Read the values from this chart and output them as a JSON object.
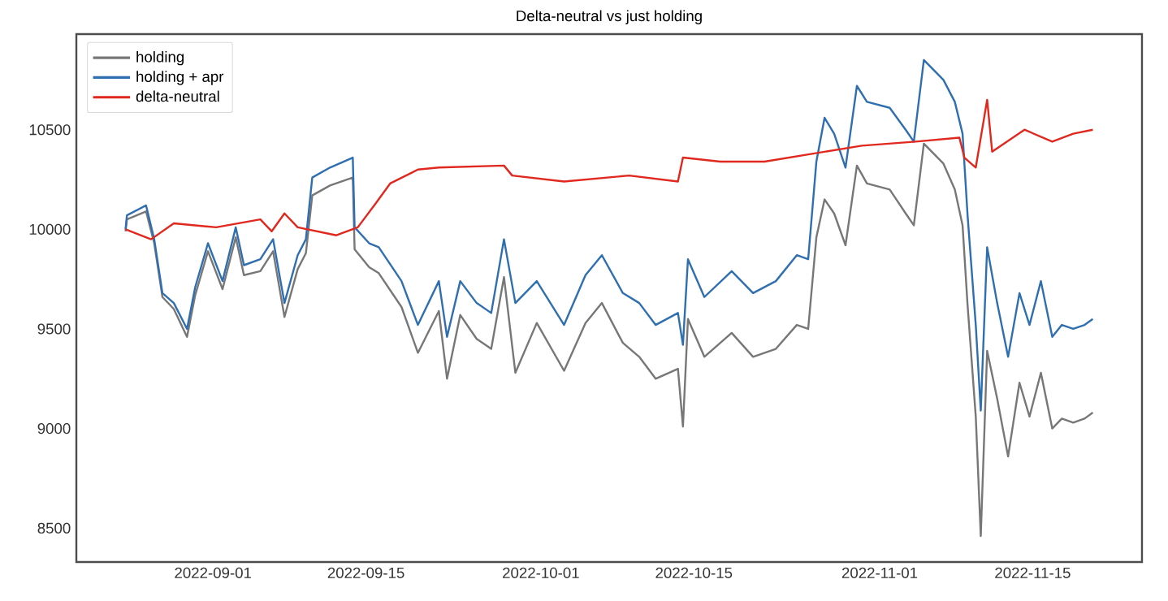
{
  "chart_data": {
    "type": "line",
    "title": "Delta-neutral vs just holding",
    "xlim": [
      "2022-08-19T12:00",
      "2022-11-25T00:00"
    ],
    "xticks": [
      "2022-09-01",
      "2022-09-15",
      "2022-10-01",
      "2022-10-15",
      "2022-11-01",
      "2022-11-15"
    ],
    "ylim": [
      8330,
      10980
    ],
    "yticks": [
      8500,
      9000,
      9500,
      10000,
      10500
    ],
    "legend": "top left",
    "grid": false,
    "series": [
      {
        "name": "holding",
        "color": "#777777",
        "x": [
          "2022-08-24T00:00",
          "2022-08-24T03:00",
          "2022-08-25T21:00",
          "2022-08-26T15:00",
          "2022-08-27T09:00",
          "2022-08-28T10:00",
          "2022-08-29T15:00",
          "2022-08-30T09:00",
          "2022-08-31T13:00",
          "2022-09-01T21:00",
          "2022-09-03T02:00",
          "2022-09-03T20:00",
          "2022-09-05T08:00",
          "2022-09-06T12:00",
          "2022-09-07T13:00",
          "2022-09-08T18:00",
          "2022-09-09T12:00",
          "2022-09-10T02:00",
          "2022-09-11T17:00",
          "2022-09-13T19:00",
          "2022-09-13T23:00",
          "2022-09-15T07:00",
          "2022-09-16T04:00",
          "2022-09-18T06:00",
          "2022-09-19T18:00",
          "2022-09-21T16:00",
          "2022-09-22T10:00",
          "2022-09-23T15:00",
          "2022-09-25T03:00",
          "2022-09-26T11:00",
          "2022-09-27T15:00",
          "2022-09-28T16:00",
          "2022-09-30T15:00",
          "2022-10-03T03:00",
          "2022-10-05T02:00",
          "2022-10-06T14:00",
          "2022-10-08T12:00",
          "2022-10-10T00:00",
          "2022-10-11T12:00",
          "2022-10-13T13:00",
          "2022-10-14T00:00",
          "2022-10-14T11:00",
          "2022-10-15T23:00",
          "2022-10-18T11:00",
          "2022-10-20T10:00",
          "2022-10-22T12:00",
          "2022-10-24T10:00",
          "2022-10-25T11:00",
          "2022-10-26T05:00",
          "2022-10-26T23:00",
          "2022-10-27T20:00",
          "2022-10-28T21:00",
          "2022-10-29T22:00",
          "2022-10-30T20:00",
          "2022-11-01T22:00",
          "2022-11-03T09:00",
          "2022-11-04T03:00",
          "2022-11-05T01:00",
          "2022-11-06T20:00",
          "2022-11-07T21:00",
          "2022-11-08T14:00",
          "2022-11-09T01:00",
          "2022-11-09T19:00",
          "2022-11-10T06:00",
          "2022-11-10T20:00",
          "2022-11-11T18:00",
          "2022-11-12T18:00",
          "2022-11-13T19:00",
          "2022-11-14T17:00",
          "2022-11-15T18:00",
          "2022-11-16T19:00",
          "2022-11-17T16:00",
          "2022-11-18T17:00",
          "2022-11-19T18:00",
          "2022-11-20T12:00"
        ],
        "values": [
          9990,
          10050,
          10090,
          9930,
          9660,
          9600,
          9460,
          9670,
          9890,
          9700,
          9960,
          9770,
          9790,
          9890,
          9560,
          9800,
          9880,
          10170,
          10220,
          10260,
          9900,
          9810,
          9780,
          9610,
          9380,
          9590,
          9250,
          9570,
          9450,
          9400,
          9760,
          9280,
          9530,
          9290,
          9530,
          9630,
          9430,
          9360,
          9250,
          9300,
          9010,
          9550,
          9360,
          9480,
          9360,
          9400,
          9520,
          9500,
          9960,
          10150,
          10080,
          9920,
          10320,
          10230,
          10200,
          10080,
          10020,
          10430,
          10330,
          10200,
          10020,
          9620,
          9060,
          8460,
          9390,
          9150,
          8860,
          9230,
          9060,
          9280,
          9000,
          9050,
          9030,
          9050,
          9080
        ]
      },
      {
        "name": "holding + apr",
        "color": "#2f6fb0",
        "x": [
          "2022-08-24T00:00",
          "2022-08-24T03:00",
          "2022-08-25T21:00",
          "2022-08-26T15:00",
          "2022-08-27T09:00",
          "2022-08-28T10:00",
          "2022-08-29T15:00",
          "2022-08-30T09:00",
          "2022-08-31T13:00",
          "2022-09-01T21:00",
          "2022-09-03T02:00",
          "2022-09-03T20:00",
          "2022-09-05T08:00",
          "2022-09-06T12:00",
          "2022-09-07T13:00",
          "2022-09-08T18:00",
          "2022-09-09T12:00",
          "2022-09-10T02:00",
          "2022-09-11T17:00",
          "2022-09-13T19:00",
          "2022-09-13T23:00",
          "2022-09-15T07:00",
          "2022-09-16T04:00",
          "2022-09-18T06:00",
          "2022-09-19T18:00",
          "2022-09-21T16:00",
          "2022-09-22T10:00",
          "2022-09-23T15:00",
          "2022-09-25T03:00",
          "2022-09-26T11:00",
          "2022-09-27T15:00",
          "2022-09-28T16:00",
          "2022-09-30T15:00",
          "2022-10-03T03:00",
          "2022-10-05T02:00",
          "2022-10-06T14:00",
          "2022-10-08T12:00",
          "2022-10-10T00:00",
          "2022-10-11T12:00",
          "2022-10-13T13:00",
          "2022-10-14T00:00",
          "2022-10-14T11:00",
          "2022-10-15T23:00",
          "2022-10-18T11:00",
          "2022-10-20T10:00",
          "2022-10-22T12:00",
          "2022-10-24T10:00",
          "2022-10-25T11:00",
          "2022-10-26T05:00",
          "2022-10-26T23:00",
          "2022-10-27T20:00",
          "2022-10-28T21:00",
          "2022-10-29T22:00",
          "2022-10-30T20:00",
          "2022-11-01T22:00",
          "2022-11-03T09:00",
          "2022-11-04T03:00",
          "2022-11-05T01:00",
          "2022-11-06T20:00",
          "2022-11-07T21:00",
          "2022-11-08T14:00",
          "2022-11-09T01:00",
          "2022-11-09T19:00",
          "2022-11-10T06:00",
          "2022-11-10T20:00",
          "2022-11-11T18:00",
          "2022-11-12T18:00",
          "2022-11-13T19:00",
          "2022-11-14T17:00",
          "2022-11-15T18:00",
          "2022-11-16T19:00",
          "2022-11-17T16:00",
          "2022-11-18T17:00",
          "2022-11-19T18:00",
          "2022-11-20T12:00"
        ],
        "values": [
          10000,
          10070,
          10120,
          9950,
          9680,
          9630,
          9500,
          9710,
          9930,
          9740,
          10010,
          9820,
          9850,
          9950,
          9630,
          9870,
          9950,
          10260,
          10310,
          10360,
          10010,
          9930,
          9910,
          9740,
          9520,
          9740,
          9460,
          9740,
          9630,
          9580,
          9950,
          9630,
          9740,
          9520,
          9770,
          9870,
          9680,
          9630,
          9520,
          9580,
          9420,
          9850,
          9660,
          9790,
          9680,
          9740,
          9870,
          9850,
          10340,
          10560,
          10480,
          10310,
          10720,
          10640,
          10610,
          10500,
          10440,
          10850,
          10750,
          10640,
          10480,
          10070,
          9520,
          9090,
          9910,
          9630,
          9360,
          9680,
          9520,
          9740,
          9460,
          9520,
          9500,
          9520,
          9550
        ]
      },
      {
        "name": "delta-neutral",
        "color": "#e0281e",
        "x": [
          "2022-08-24T00:00",
          "2022-08-26T08:00",
          "2022-08-28T10:00",
          "2022-09-01T07:00",
          "2022-09-05T08:00",
          "2022-09-06T09:00",
          "2022-09-07T13:00",
          "2022-09-08T18:00",
          "2022-09-12T07:00",
          "2022-09-14T06:00",
          "2022-09-15T18:00",
          "2022-09-17T05:00",
          "2022-09-19T18:00",
          "2022-09-21T16:00",
          "2022-09-27T15:00",
          "2022-09-28T09:00",
          "2022-10-03T03:00",
          "2022-10-09T02:00",
          "2022-10-13T13:00",
          "2022-10-14T00:00",
          "2022-10-17T10:00",
          "2022-10-21T11:00",
          "2022-10-25T22:00",
          "2022-10-30T09:00",
          "2022-11-04T07:00",
          "2022-11-08T07:00",
          "2022-11-08T18:00",
          "2022-11-09T19:00",
          "2022-11-10T20:00",
          "2022-11-11T07:00",
          "2022-11-14T06:00",
          "2022-11-16T19:00",
          "2022-11-18T17:00",
          "2022-11-20T12:00"
        ],
        "values": [
          10000,
          9950,
          10030,
          10010,
          10050,
          9990,
          10080,
          10010,
          9970,
          10010,
          10120,
          10230,
          10300,
          10310,
          10320,
          10270,
          10240,
          10270,
          10240,
          10360,
          10340,
          10340,
          10380,
          10420,
          10440,
          10460,
          10360,
          10310,
          10650,
          10390,
          10500,
          10440,
          10480,
          10500
        ]
      }
    ]
  }
}
